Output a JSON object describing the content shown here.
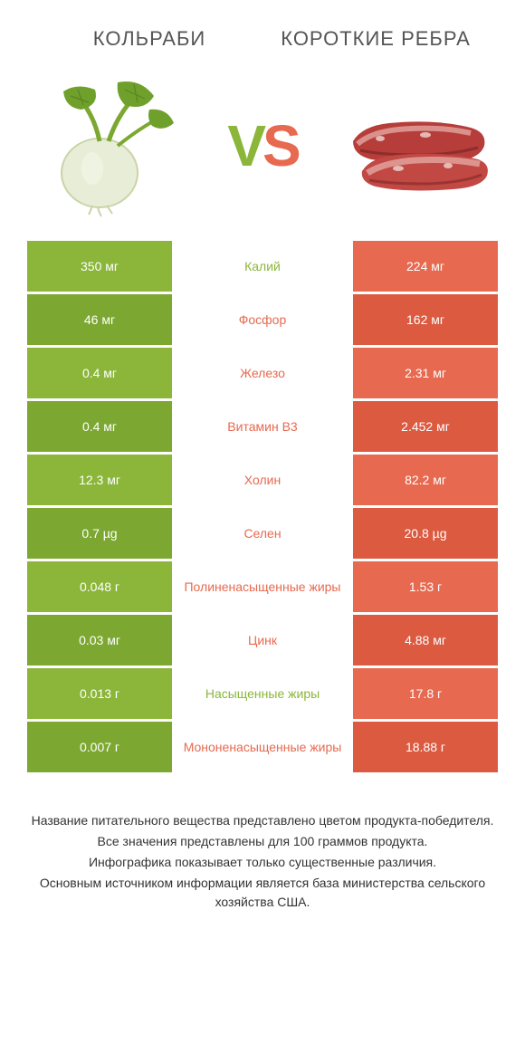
{
  "colors": {
    "green": "#8bb63a",
    "greenDark": "#7ca832",
    "orange": "#e7694f",
    "orangeDark": "#db5a40",
    "white": "#ffffff",
    "text": "#555555"
  },
  "header": {
    "left": "Кольраби",
    "right": "Короткие ребра"
  },
  "vs": {
    "v": "V",
    "s": "S"
  },
  "rows": [
    {
      "left": "350 мг",
      "mid": "Калий",
      "right": "224 мг",
      "winner": "left"
    },
    {
      "left": "46 мг",
      "mid": "Фосфор",
      "right": "162 мг",
      "winner": "right"
    },
    {
      "left": "0.4 мг",
      "mid": "Железо",
      "right": "2.31 мг",
      "winner": "right"
    },
    {
      "left": "0.4 мг",
      "mid": "Витамин B3",
      "right": "2.452 мг",
      "winner": "right"
    },
    {
      "left": "12.3 мг",
      "mid": "Холин",
      "right": "82.2 мг",
      "winner": "right"
    },
    {
      "left": "0.7 µg",
      "mid": "Селен",
      "right": "20.8 µg",
      "winner": "right"
    },
    {
      "left": "0.048 г",
      "mid": "Полиненасыщенные жиры",
      "right": "1.53 г",
      "winner": "right"
    },
    {
      "left": "0.03 мг",
      "mid": "Цинк",
      "right": "4.88 мг",
      "winner": "right"
    },
    {
      "left": "0.013 г",
      "mid": "Насыщенные жиры",
      "right": "17.8 г",
      "winner": "left"
    },
    {
      "left": "0.007 г",
      "mid": "Мононенасыщенные жиры",
      "right": "18.88 г",
      "winner": "right"
    }
  ],
  "footer": [
    "Название питательного вещества представлено цветом продукта-победителя.",
    "Все значения представлены для 100 граммов продукта.",
    "Инфографика показывает только существенные различия.",
    "Основным источником информации является база министерства сельского хозяйства США."
  ]
}
